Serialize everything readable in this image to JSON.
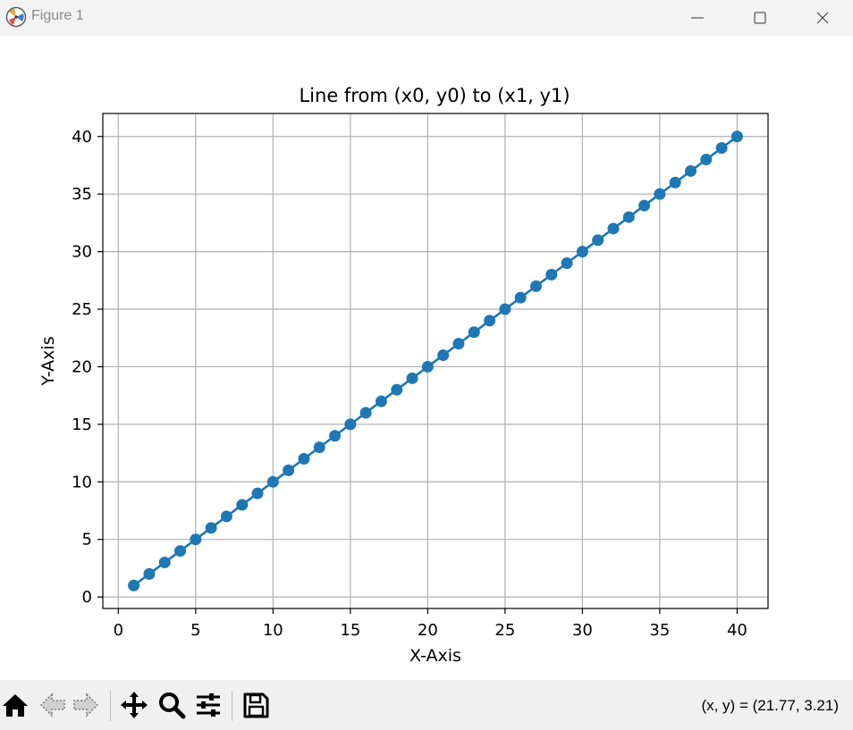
{
  "window": {
    "title": "Figure 1",
    "icon": "matplotlib-icon"
  },
  "toolbar": {
    "buttons": [
      "home-icon",
      "back-arrow-icon",
      "forward-arrow-icon",
      "pan-icon",
      "zoom-icon",
      "configure-subplots-icon",
      "save-icon"
    ],
    "coords": "(x, y) = (21.77, 3.21)"
  },
  "chart_data": {
    "type": "line",
    "title": "Line from (x0, y0) to (x1, y1)",
    "xlabel": "X-Axis",
    "ylabel": "Y-Axis",
    "xlim": [
      -1,
      42
    ],
    "ylim": [
      -1,
      42
    ],
    "xticks": [
      0,
      5,
      10,
      15,
      20,
      25,
      30,
      35,
      40
    ],
    "yticks": [
      0,
      5,
      10,
      15,
      20,
      25,
      30,
      35,
      40
    ],
    "grid": true,
    "marker": "circle",
    "color": "#1f77b4",
    "series": [
      {
        "x": [
          1,
          2,
          3,
          4,
          5,
          6,
          7,
          8,
          9,
          10,
          11,
          12,
          13,
          14,
          15,
          16,
          17,
          18,
          19,
          20,
          21,
          22,
          23,
          24,
          25,
          26,
          27,
          28,
          29,
          30,
          31,
          32,
          33,
          34,
          35,
          36,
          37,
          38,
          39,
          40
        ],
        "y": [
          1,
          2,
          3,
          4,
          5,
          6,
          7,
          8,
          9,
          10,
          11,
          12,
          13,
          14,
          15,
          16,
          17,
          18,
          19,
          20,
          21,
          22,
          23,
          24,
          25,
          26,
          27,
          28,
          29,
          30,
          31,
          32,
          33,
          34,
          35,
          36,
          37,
          38,
          39,
          40
        ]
      }
    ]
  }
}
